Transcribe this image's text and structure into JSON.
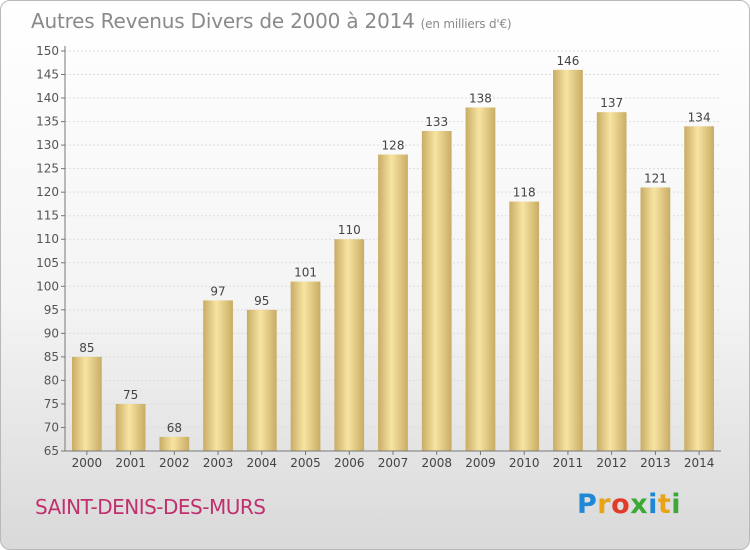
{
  "header": {
    "title": "Autres Revenus Divers de 2000 à 2014",
    "unit": "(en milliers d'€)"
  },
  "footer": {
    "commune": "SAINT-DENIS-DES-MURS",
    "logo_letters": [
      "P",
      "r",
      "o",
      "x",
      "i",
      "t",
      "i"
    ],
    "logo_colors": [
      "#1f88d6",
      "#e8a317",
      "#e23b2a",
      "#3aa935",
      "#1f88d6",
      "#e8a317",
      "#3aa935"
    ]
  },
  "chart_data": {
    "type": "bar",
    "categories": [
      "2000",
      "2001",
      "2002",
      "2003",
      "2004",
      "2005",
      "2006",
      "2007",
      "2008",
      "2009",
      "2010",
      "2011",
      "2012",
      "2013",
      "2014"
    ],
    "values": [
      85,
      75,
      68,
      97,
      95,
      101,
      110,
      128,
      133,
      138,
      118,
      146,
      137,
      121,
      134
    ],
    "ylim": [
      65,
      150
    ],
    "yticks": [
      65,
      70,
      75,
      80,
      85,
      90,
      95,
      100,
      105,
      110,
      115,
      120,
      125,
      130,
      135,
      140,
      145,
      150
    ],
    "grid": true,
    "xlabel": "",
    "ylabel": "",
    "bar_colors": [
      "#c8ac64",
      "#f8e4a2"
    ],
    "axis_color": "#777777"
  }
}
